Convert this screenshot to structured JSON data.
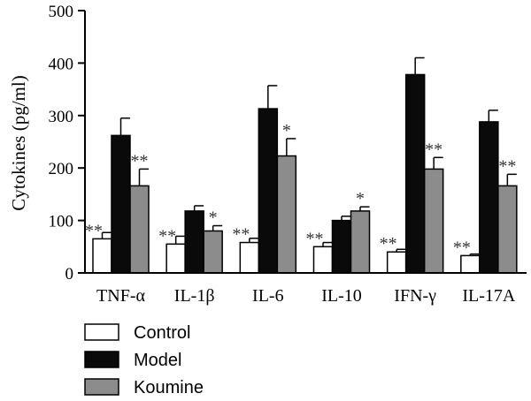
{
  "chart_data": {
    "type": "bar",
    "ylabel": "Cytokines (pg/ml)",
    "ylim": [
      0,
      500
    ],
    "yticks": [
      "0",
      "100",
      "200",
      "300",
      "400",
      "500"
    ],
    "categories": [
      "TNF-α",
      "IL-1β",
      "IL-6",
      "IL-10",
      "IFN-γ",
      "IL-17A"
    ],
    "series": [
      {
        "name": "Control",
        "color": "#ffffff",
        "values": [
          65,
          55,
          58,
          50,
          40,
          33
        ],
        "errors": [
          12,
          15,
          8,
          8,
          5,
          3
        ],
        "sig": [
          "**",
          "**",
          "**",
          "**",
          "**",
          "**"
        ]
      },
      {
        "name": "Model",
        "color": "#0a0a0a",
        "values": [
          262,
          118,
          313,
          100,
          378,
          288
        ],
        "errors": [
          33,
          10,
          44,
          8,
          32,
          22
        ],
        "sig": [
          "",
          "",
          "",
          "",
          "",
          ""
        ]
      },
      {
        "name": "Koumine",
        "color": "#8c8c8c",
        "values": [
          166,
          80,
          223,
          118,
          198,
          166
        ],
        "errors": [
          32,
          10,
          33,
          8,
          22,
          22
        ],
        "sig": [
          "**",
          "*",
          "*",
          "*",
          "**",
          "**"
        ]
      }
    ],
    "legend_position": "bottom-left",
    "grid": false
  }
}
